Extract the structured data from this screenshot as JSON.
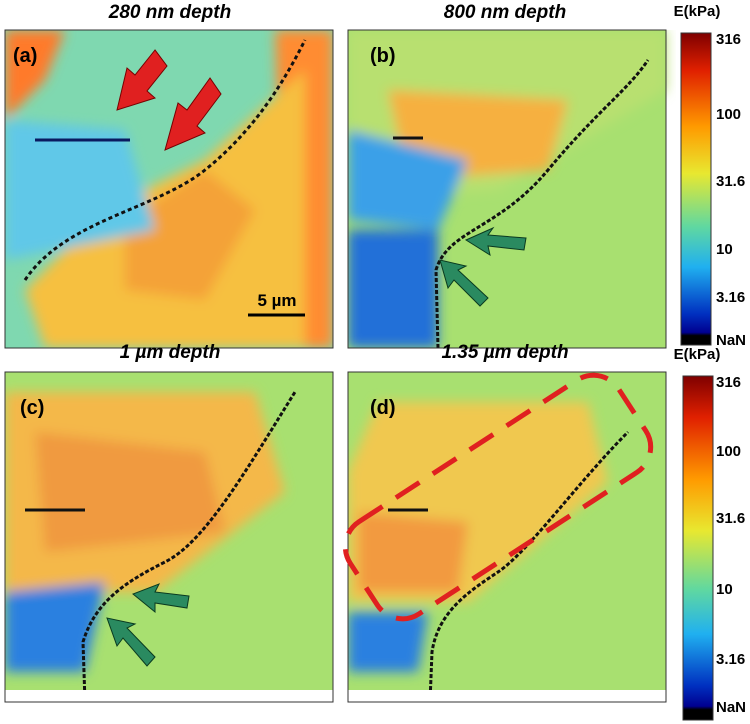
{
  "panels": [
    {
      "title": "280 nm depth",
      "label": "(a)"
    },
    {
      "title": "800 nm depth",
      "label": "(b)"
    },
    {
      "title": "1 µm depth",
      "label": "(c)"
    },
    {
      "title": "1.35 µm depth",
      "label": "(d)"
    }
  ],
  "scale_bar": "5 µm",
  "colorbars": [
    {
      "label": "E(kPa)",
      "ticks": [
        "316",
        "100",
        "31.6",
        "10",
        "3.16",
        "NaN"
      ]
    },
    {
      "label": "E(kPa)",
      "ticks": [
        "316",
        "100",
        "31.6",
        "10",
        "3.16",
        "NaN"
      ]
    }
  ]
}
